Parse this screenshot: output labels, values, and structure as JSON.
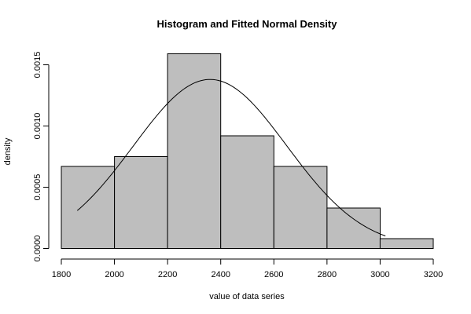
{
  "chart_data": {
    "type": "bar",
    "title": "Histogram and Fitted Normal Density",
    "xlabel": "value of data series",
    "ylabel": "density",
    "xlim": [
      1800,
      3200
    ],
    "ylim": [
      0,
      0.00159
    ],
    "x_ticks": [
      "1800",
      "2000",
      "2200",
      "2400",
      "2600",
      "2800",
      "3000",
      "3200"
    ],
    "y_ticks": [
      "0.0000",
      "0.0005",
      "0.0010",
      "0.0015"
    ],
    "x_tick_values": [
      1800,
      2000,
      2200,
      2400,
      2600,
      2800,
      3000,
      3200
    ],
    "y_tick_values": [
      0,
      0.0005,
      0.001,
      0.0015
    ],
    "bins": [
      {
        "from": 1800,
        "to": 2000,
        "density": 0.00067
      },
      {
        "from": 2000,
        "to": 2200,
        "density": 0.00075
      },
      {
        "from": 2200,
        "to": 2400,
        "density": 0.00159
      },
      {
        "from": 2400,
        "to": 2600,
        "density": 0.00092
      },
      {
        "from": 2600,
        "to": 2800,
        "density": 0.00067
      },
      {
        "from": 2800,
        "to": 3000,
        "density": 0.00033
      },
      {
        "from": 3000,
        "to": 3200,
        "density": 8e-05
      }
    ],
    "fitted_normal": {
      "mean": 2360,
      "sd": 289,
      "x_from": 1860,
      "x_to": 3020
    },
    "grid": false,
    "legend": "none"
  },
  "colors": {
    "bar_fill": "#bebebe",
    "line": "#000000",
    "background": "#ffffff"
  }
}
